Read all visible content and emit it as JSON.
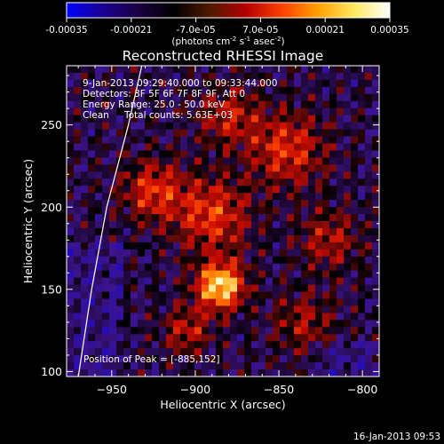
{
  "colorbar": {
    "tick_labels": [
      "-0.00035",
      "-0.00021",
      "-7.0e-05",
      "7.0e-05",
      "0.00021",
      "0.00035"
    ],
    "tick_values": [
      -0.00035,
      -0.00021,
      -7e-05,
      7e-05,
      0.00021,
      0.00035
    ],
    "range": [
      -0.00035,
      0.00035
    ],
    "unit_label": "(photons cm",
    "unit_exp1": "-2",
    "unit_mid": " s",
    "unit_exp2": "-1",
    "unit_tail": " asec",
    "unit_exp3": "-2",
    "unit_close": ")",
    "colors": [
      "#0000ff",
      "#1a0090",
      "#1a0040",
      "#000000",
      "#501a00",
      "#b40000",
      "#ff4000",
      "#ffa000",
      "#ffe860",
      "#ffffff"
    ]
  },
  "header": {
    "line1": "9-Jan-2013 09:29:40.000 to 09:33:44.000",
    "line2": "Detectors: 3F 5F 6F 7F 8F 9F, Att 0",
    "line3": "Energy Range: 25.0 - 50.0 keV",
    "line4a": "Clean",
    "line4b": "Total counts: 5.63E+03"
  },
  "peak_text": "Position of Peak = [-885,152]",
  "footer_date": "16-Jan-2013 09:53",
  "chart_data": {
    "type": "heatmap",
    "title": "Reconstructed RHESSI Image",
    "xlabel": "Heliocentric X (arcsec)",
    "ylabel": "Heliocentric Y (arcsec)",
    "xlim": [
      -977,
      -790
    ],
    "ylim": [
      97,
      286
    ],
    "x_ticks": [
      -950,
      -900,
      -850,
      -800
    ],
    "x_tick_labels": [
      "−950",
      "−900",
      "−850",
      "−800"
    ],
    "y_ticks": [
      100,
      150,
      200,
      250
    ],
    "y_tick_labels": [
      "100",
      "150",
      "200",
      "250"
    ],
    "peak": [
      -885,
      152
    ],
    "limb_curve": [
      [
        -970,
        97
      ],
      [
        -962,
        150
      ],
      [
        -953,
        200
      ],
      [
        -940,
        250
      ],
      [
        -932,
        286
      ]
    ],
    "grid": false
  }
}
